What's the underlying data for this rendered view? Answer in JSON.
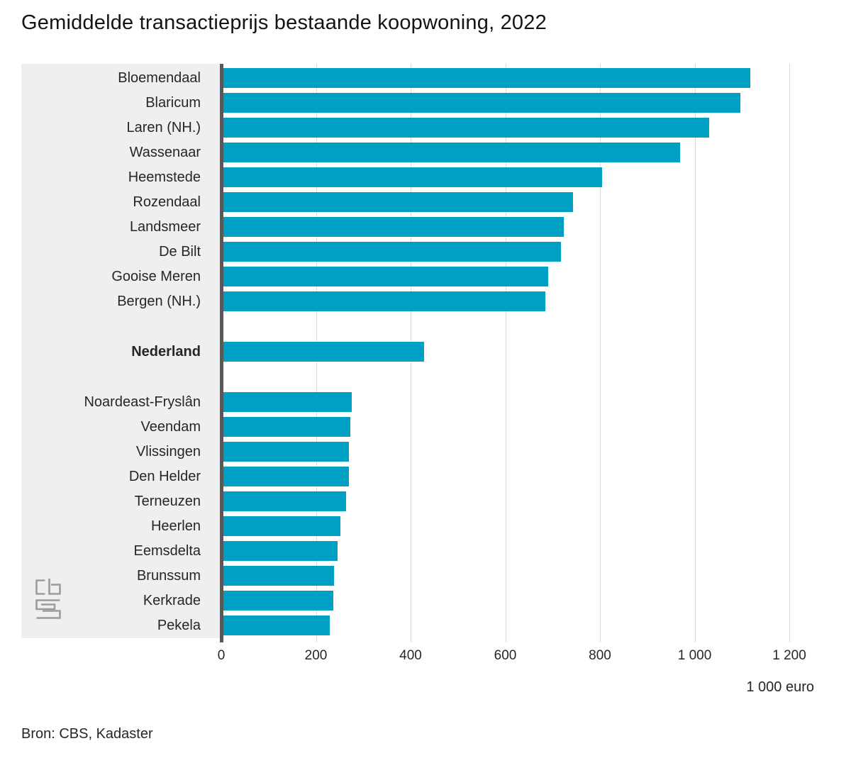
{
  "title": "Gemiddelde transactieprijs bestaande koopwoning, 2022",
  "source": "Bron: CBS, Kadaster",
  "logo": "cbs-logo",
  "colors": {
    "bar": "#00a0c5",
    "panel": "#efefef",
    "axis": "#58585a",
    "gridline": "#d9d9d9",
    "text": "#262626"
  },
  "chart_data": {
    "type": "bar",
    "orientation": "horizontal",
    "title": "Gemiddelde transactieprijs bestaande koopwoning, 2022",
    "xlabel": "1 000 euro",
    "ylabel": "",
    "xlim": [
      0,
      1260
    ],
    "grid": true,
    "x_ticks": [
      {
        "value": 0,
        "label": "0"
      },
      {
        "value": 200,
        "label": "200"
      },
      {
        "value": 400,
        "label": "400"
      },
      {
        "value": 600,
        "label": "600"
      },
      {
        "value": 800,
        "label": "800"
      },
      {
        "value": 1000,
        "label": "1 000"
      },
      {
        "value": 1200,
        "label": "1 200"
      }
    ],
    "groups": [
      {
        "id": "highest-municipalities",
        "bars": [
          {
            "label": "Bloemendaal",
            "value": 1117
          },
          {
            "label": "Blaricum",
            "value": 1097
          },
          {
            "label": "Laren (NH.)",
            "value": 1030
          },
          {
            "label": "Wassenaar",
            "value": 970
          },
          {
            "label": "Heemstede",
            "value": 805
          },
          {
            "label": "Rozendaal",
            "value": 743
          },
          {
            "label": "Landsmeer",
            "value": 723
          },
          {
            "label": "De Bilt",
            "value": 717
          },
          {
            "label": "Gooise Meren",
            "value": 691
          },
          {
            "label": "Bergen (NH.)",
            "value": 684
          }
        ]
      },
      {
        "id": "national-average",
        "bars": [
          {
            "label": "Nederland",
            "value": 429,
            "emphasis": true
          }
        ]
      },
      {
        "id": "lowest-municipalities",
        "bars": [
          {
            "label": "Noardeast-Fryslân",
            "value": 276
          },
          {
            "label": "Veendam",
            "value": 273
          },
          {
            "label": "Vlissingen",
            "value": 270
          },
          {
            "label": "Den Helder",
            "value": 269
          },
          {
            "label": "Terneuzen",
            "value": 264
          },
          {
            "label": "Heerlen",
            "value": 251
          },
          {
            "label": "Eemsdelta",
            "value": 245
          },
          {
            "label": "Brunssum",
            "value": 238
          },
          {
            "label": "Kerkrade",
            "value": 236
          },
          {
            "label": "Pekela",
            "value": 229
          }
        ]
      }
    ]
  }
}
